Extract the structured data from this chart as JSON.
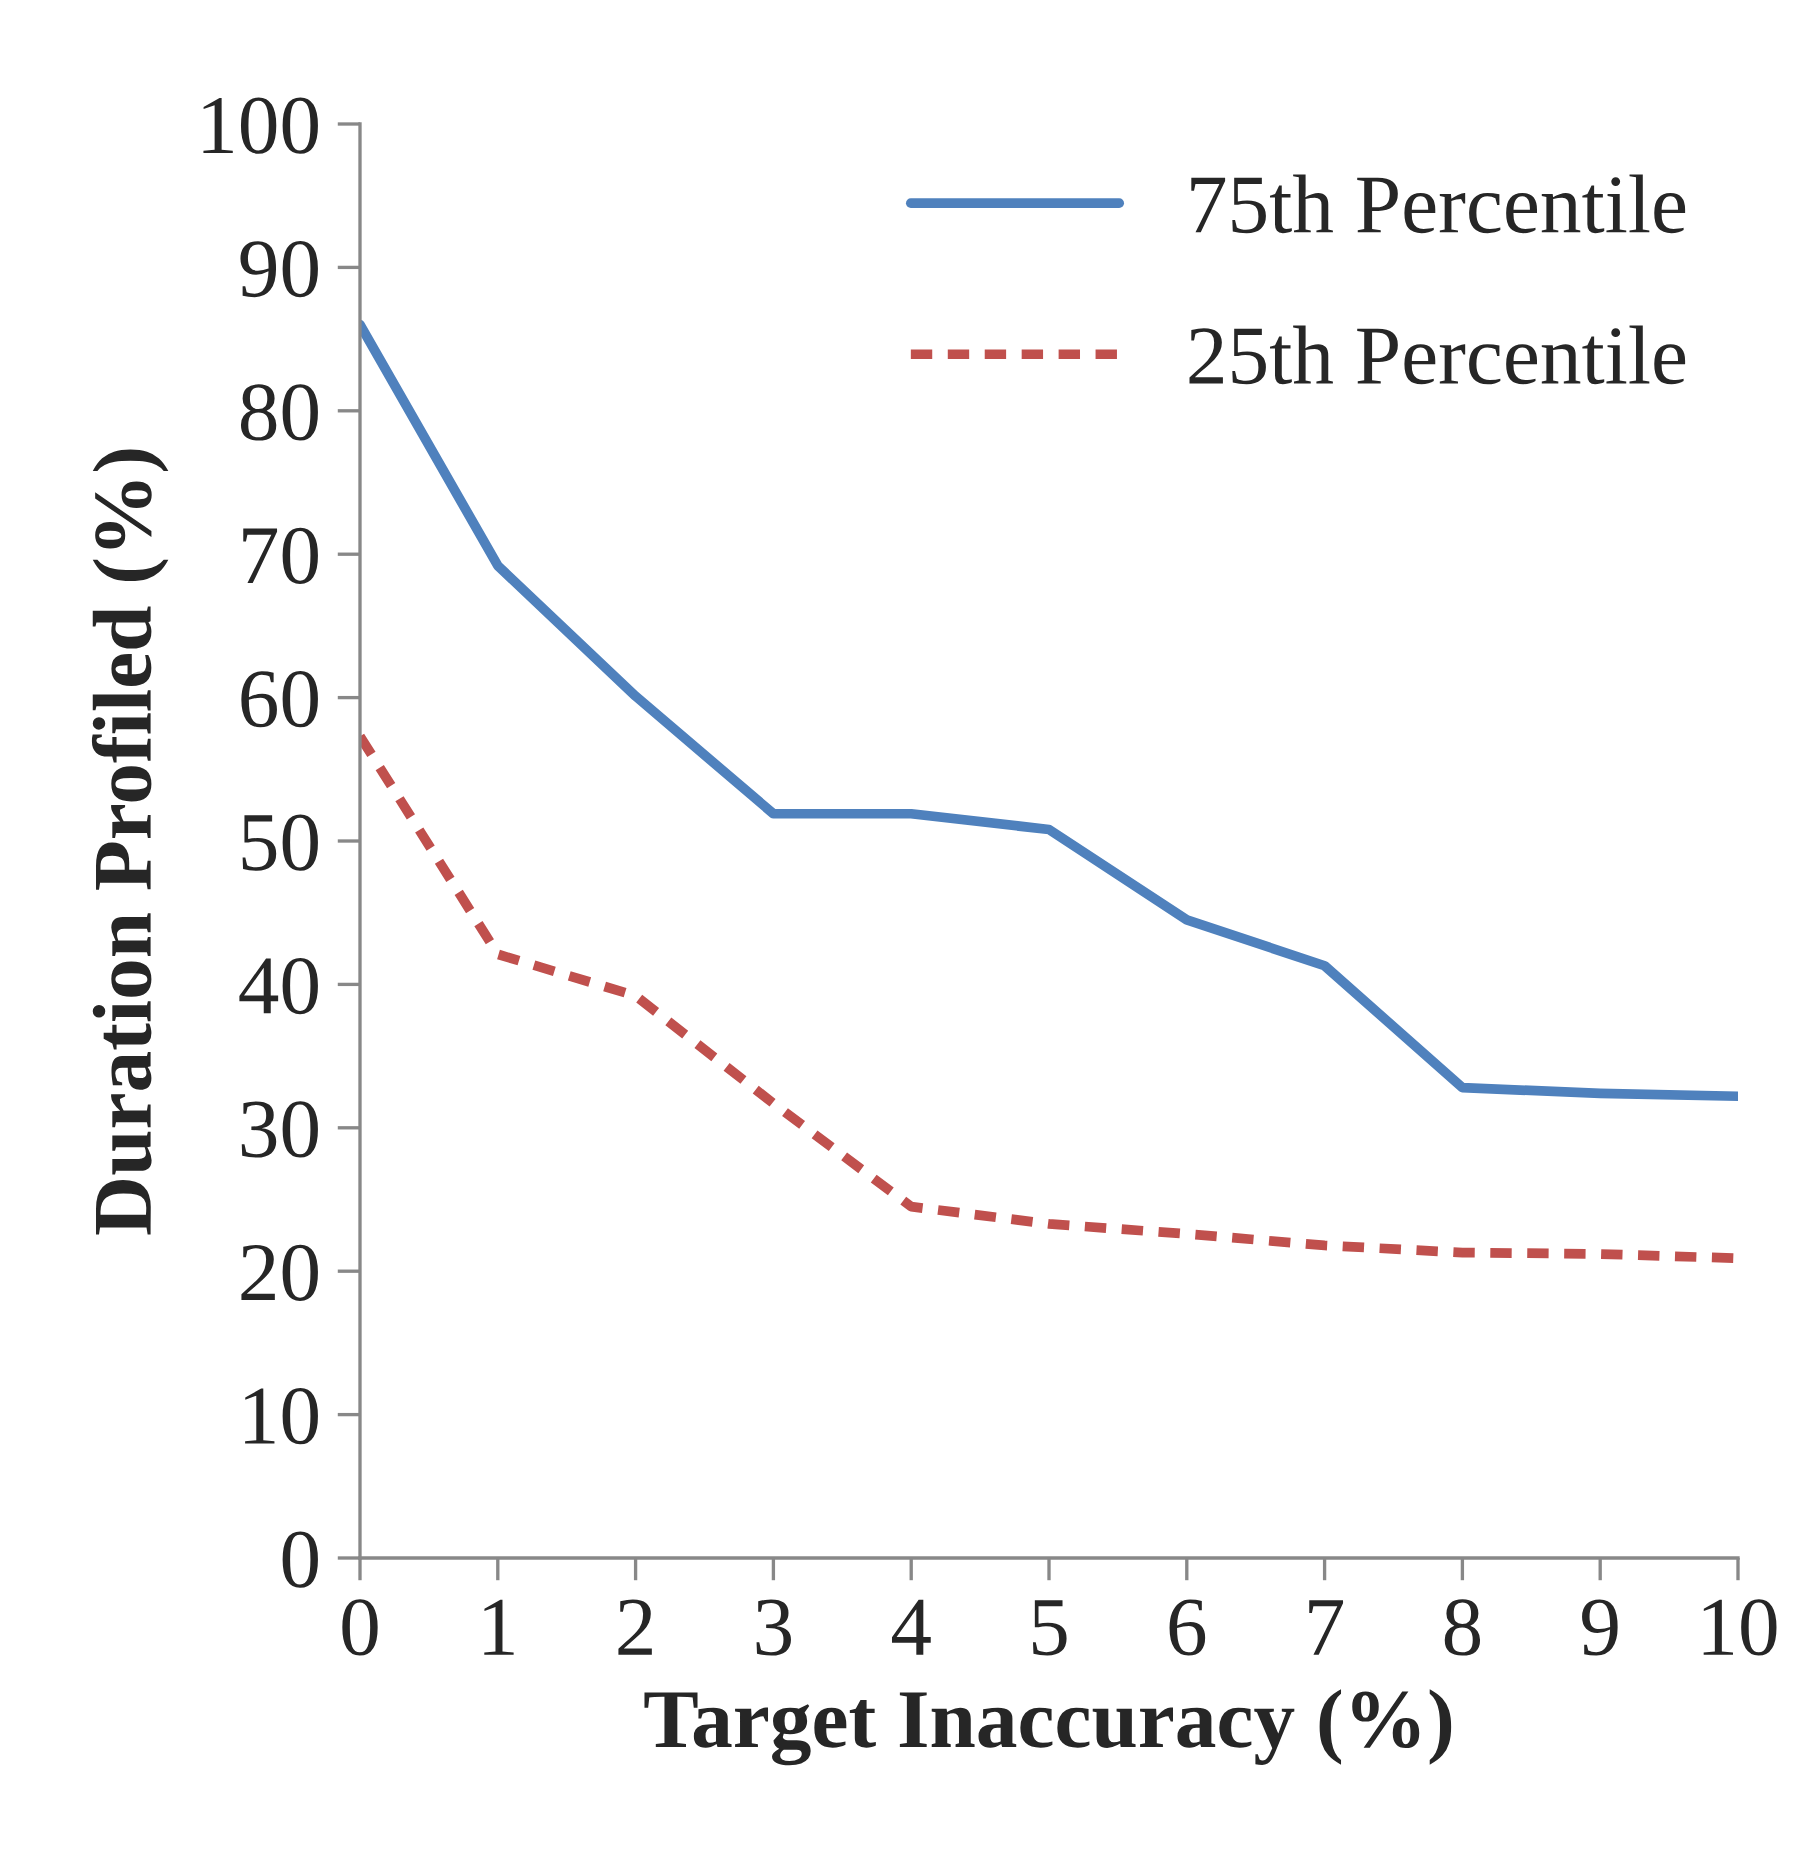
{
  "chart_data": {
    "type": "line",
    "xlabel": "Target Inaccuracy (%)",
    "ylabel": "Duration Profiled (%)",
    "x": [
      0,
      1,
      2,
      3,
      4,
      5,
      6,
      7,
      8,
      9,
      10
    ],
    "series": [
      {
        "name": "75th Percentile",
        "color": "#4f81bd",
        "line_style": "solid",
        "values": [
          86.0,
          69.2,
          60.1,
          51.9,
          51.9,
          50.8,
          44.5,
          41.3,
          32.8,
          32.4,
          32.2
        ]
      },
      {
        "name": "25th Percentile",
        "color": "#c0504d",
        "line_style": "dashed",
        "values": [
          57.3,
          42.1,
          39.2,
          31.7,
          24.5,
          23.3,
          22.6,
          21.8,
          21.3,
          21.2,
          20.9
        ]
      }
    ],
    "xlim": [
      0,
      10
    ],
    "xticks": [
      0,
      1,
      2,
      3,
      4,
      5,
      6,
      7,
      8,
      9,
      10
    ],
    "ylim": [
      0,
      100
    ],
    "yticks": [
      0,
      10,
      20,
      30,
      40,
      50,
      60,
      70,
      80,
      90,
      100
    ],
    "grid": false,
    "legend": "top right",
    "marker": "none"
  }
}
